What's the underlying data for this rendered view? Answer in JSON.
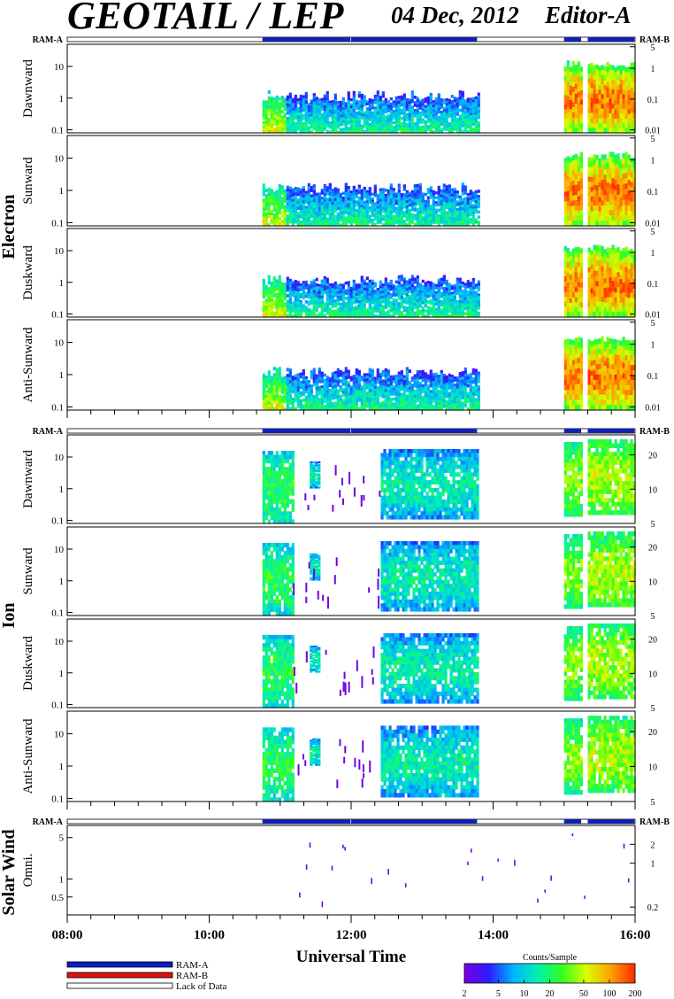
{
  "header": {
    "title": "GEOTAIL / LEP",
    "date": "04 Dec, 2012",
    "editor": "Editor-A"
  },
  "chart_data": {
    "type": "heatmap",
    "xlabel": "Universal Time",
    "x_range": [
      "08:00",
      "16:00"
    ],
    "x_ticks": [
      "08:00",
      "10:00",
      "12:00",
      "14:00",
      "16:00"
    ],
    "ram_labels": {
      "left": "RAM-A",
      "right": "RAM-B"
    },
    "ram_bars": [
      {
        "label": "RAM-A",
        "color": "#0a1ecc",
        "segments": [
          [
            "10:45",
            "12:00"
          ],
          [
            "12:00",
            "13:47"
          ],
          [
            "15:00",
            "15:15"
          ],
          [
            "15:20",
            "16:00"
          ]
        ]
      },
      {
        "label": "Lack of Data",
        "color": "#ffffff",
        "segments": [
          [
            "08:00",
            "10:45"
          ],
          [
            "13:47",
            "15:00"
          ],
          [
            "15:15",
            "15:20"
          ]
        ]
      }
    ],
    "groups": [
      {
        "name": "Electron",
        "panels": [
          {
            "label": "Dawnward",
            "left_ticks": [
              "10",
              "1",
              "0.1"
            ],
            "left_values": [
              10,
              1,
              0.1
            ],
            "left_range": [
              0.08,
              50
            ],
            "right_ticks": [
              "5",
              "1",
              "0.1",
              "0.01"
            ],
            "right_values": [
              5,
              1,
              0.1,
              0.01
            ],
            "right_range": [
              0.008,
              6
            ]
          },
          {
            "label": "Sunward",
            "left_ticks": [
              "10",
              "1",
              "0.1"
            ],
            "left_values": [
              10,
              1,
              0.1
            ],
            "left_range": [
              0.08,
              50
            ],
            "right_ticks": [
              "5",
              "1",
              "0.1",
              "0.01"
            ],
            "right_values": [
              5,
              1,
              0.1,
              0.01
            ],
            "right_range": [
              0.008,
              6
            ]
          },
          {
            "label": "Duskward",
            "left_ticks": [
              "10",
              "1",
              "0.1"
            ],
            "left_values": [
              10,
              1,
              0.1
            ],
            "left_range": [
              0.08,
              50
            ],
            "right_ticks": [
              "5",
              "1",
              "0.1",
              "0.01"
            ],
            "right_values": [
              5,
              1,
              0.1,
              0.01
            ],
            "right_range": [
              0.008,
              6
            ]
          },
          {
            "label": "Anti-Sunward",
            "left_ticks": [
              "10",
              "1",
              "0.1"
            ],
            "left_values": [
              10,
              1,
              0.1
            ],
            "left_range": [
              0.08,
              50
            ],
            "right_ticks": [
              "5",
              "1",
              "0.1",
              "0.01"
            ],
            "right_values": [
              5,
              1,
              0.1,
              0.01
            ],
            "right_range": [
              0.008,
              6
            ]
          }
        ]
      },
      {
        "name": "Ion",
        "panels": [
          {
            "label": "Dawnward",
            "left_ticks": [
              "10",
              "1",
              "0.1"
            ],
            "left_values": [
              10,
              1,
              0.1
            ],
            "left_range": [
              0.08,
              50
            ],
            "right_ticks": [
              "20",
              "10",
              "5"
            ],
            "right_values": [
              20,
              10,
              5
            ],
            "right_range": [
              5,
              30
            ]
          },
          {
            "label": "Sunward",
            "left_ticks": [
              "10",
              "1",
              "0.1"
            ],
            "left_values": [
              10,
              1,
              0.1
            ],
            "left_range": [
              0.08,
              50
            ],
            "right_ticks": [
              "20",
              "10",
              "5"
            ],
            "right_values": [
              20,
              10,
              5
            ],
            "right_range": [
              5,
              30
            ]
          },
          {
            "label": "Duskward",
            "left_ticks": [
              "10",
              "1",
              "0.1"
            ],
            "left_values": [
              10,
              1,
              0.1
            ],
            "left_range": [
              0.08,
              50
            ],
            "right_ticks": [
              "20",
              "10",
              "5"
            ],
            "right_values": [
              20,
              10,
              5
            ],
            "right_range": [
              5,
              30
            ]
          },
          {
            "label": "Anti-Sunward",
            "left_ticks": [
              "10",
              "1",
              "0.1"
            ],
            "left_values": [
              10,
              1,
              0.1
            ],
            "left_range": [
              0.08,
              50
            ],
            "right_ticks": [
              "20",
              "10",
              "5"
            ],
            "right_values": [
              20,
              10,
              5
            ],
            "right_range": [
              5,
              30
            ]
          }
        ]
      },
      {
        "name": "Solar Wind",
        "panels": [
          {
            "label": "Omni.",
            "left_ticks": [
              "5",
              "1",
              "0.5"
            ],
            "left_values": [
              5,
              1,
              0.5
            ],
            "left_range": [
              0.25,
              8
            ],
            "right_ticks": [
              "2",
              "1",
              "0.2"
            ],
            "right_values": [
              2,
              1,
              0.2
            ],
            "right_range": [
              0.15,
              4
            ]
          }
        ]
      }
    ],
    "legend": {
      "items": [
        {
          "label": "RAM-A",
          "color": "#0a1ecc"
        },
        {
          "label": "RAM-B",
          "color": "#e01010"
        },
        {
          "label": "Lack of Data",
          "color": "#ffffff"
        }
      ]
    },
    "colorbar": {
      "title": "Counts/Sample",
      "ticks": [
        "2",
        "5",
        "10",
        "20",
        "50",
        "100",
        "200"
      ],
      "tick_values": [
        2,
        5,
        10,
        20,
        50,
        100,
        200
      ],
      "range": [
        2,
        200
      ],
      "scale": "log",
      "colors": [
        "#7a00e0",
        "#2a1cff",
        "#00b4ff",
        "#00f0b0",
        "#30ff20",
        "#d8ff00",
        "#ffa000",
        "#ff2a00"
      ]
    }
  }
}
